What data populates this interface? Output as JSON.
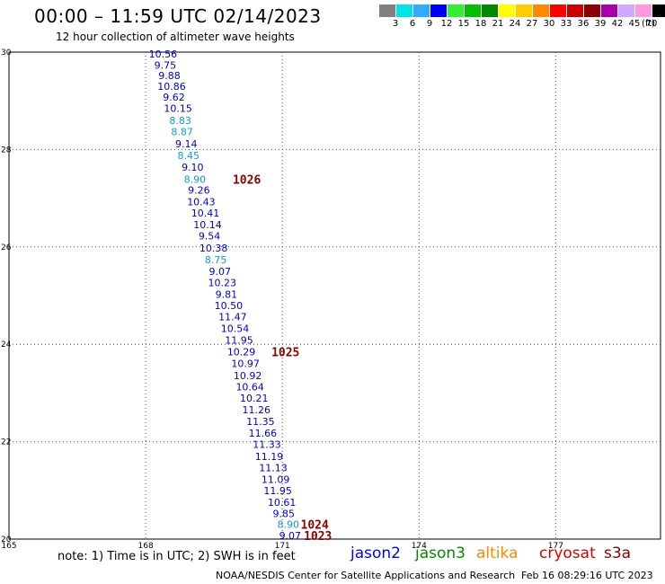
{
  "header": {
    "title": "00:00 – 11:59 UTC 02/14/2023",
    "subtitle": "12 hour collection of altimeter wave heights"
  },
  "color_scale": {
    "unit": "(ft)",
    "items": [
      {
        "label": "3",
        "color": "#808080"
      },
      {
        "label": "6",
        "color": "#00e5e5"
      },
      {
        "label": "9",
        "color": "#33aaff"
      },
      {
        "label": "12",
        "color": "#0000ff"
      },
      {
        "label": "15",
        "color": "#33ee33"
      },
      {
        "label": "18",
        "color": "#00c000"
      },
      {
        "label": "21",
        "color": "#008800"
      },
      {
        "label": "24",
        "color": "#ffff00"
      },
      {
        "label": "27",
        "color": "#ffcc00"
      },
      {
        "label": "30",
        "color": "#ff8800"
      },
      {
        "label": "33",
        "color": "#ff0000"
      },
      {
        "label": "36",
        "color": "#cc0000"
      },
      {
        "label": "39",
        "color": "#880000"
      },
      {
        "label": "42",
        "color": "#aa00aa"
      },
      {
        "label": "45",
        "color": "#ccaaff"
      },
      {
        "label": "70",
        "color": "#ff99dd"
      },
      {
        "label": "",
        "color": "#000000"
      }
    ]
  },
  "satellites": [
    {
      "name": "jason2",
      "color": "#0000ff"
    },
    {
      "name": "jason3",
      "color": "#008800"
    },
    {
      "name": "altika",
      "color": "#ff8800"
    },
    {
      "name": "cryosat",
      "color": "#dd0000"
    },
    {
      "name": "s3a",
      "color": "#880000"
    }
  ],
  "footer": {
    "note": "note: 1) Time is in UTC; 2) SWH is in feet",
    "credit": "NOAA/NESDIS Center for Satellite Applications and Research",
    "timestamp": "Feb 16 08:29:16 UTC 2023"
  },
  "chart_data": {
    "type": "scatter",
    "x_ticks": [
      "165",
      "168",
      "171",
      "174",
      "177"
    ],
    "y_ticks": [
      "20",
      "22",
      "24",
      "26",
      "28",
      "30"
    ],
    "xlim": [
      165,
      179.3
    ],
    "ylim": [
      20,
      30
    ],
    "grid": true,
    "colors": {
      "blue": "#0000cc",
      "cyan": "#1199dd",
      "time": "#880000"
    },
    "points": [
      {
        "x": 168.38,
        "y": 29.96,
        "v": "10.56",
        "c": "blue"
      },
      {
        "x": 168.43,
        "y": 29.73,
        "v": "9.75",
        "c": "blue"
      },
      {
        "x": 168.52,
        "y": 29.52,
        "v": "9.88",
        "c": "blue"
      },
      {
        "x": 168.57,
        "y": 29.3,
        "v": "10.86",
        "c": "blue"
      },
      {
        "x": 168.62,
        "y": 29.08,
        "v": "9.62",
        "c": "blue"
      },
      {
        "x": 168.71,
        "y": 28.85,
        "v": "10.15",
        "c": "blue"
      },
      {
        "x": 168.76,
        "y": 28.6,
        "v": "8.83",
        "c": "cyan"
      },
      {
        "x": 168.8,
        "y": 28.37,
        "v": "8.87",
        "c": "cyan"
      },
      {
        "x": 168.89,
        "y": 28.12,
        "v": "9.14",
        "c": "blue"
      },
      {
        "x": 168.94,
        "y": 27.88,
        "v": "8.45",
        "c": "cyan"
      },
      {
        "x": 169.03,
        "y": 27.64,
        "v": "9.10",
        "c": "blue"
      },
      {
        "x": 169.08,
        "y": 27.39,
        "v": "8.90",
        "c": "cyan"
      },
      {
        "x": 169.17,
        "y": 27.17,
        "v": "9.26",
        "c": "blue"
      },
      {
        "x": 169.22,
        "y": 26.93,
        "v": "10.43",
        "c": "blue"
      },
      {
        "x": 169.31,
        "y": 26.7,
        "v": "10.41",
        "c": "blue"
      },
      {
        "x": 169.36,
        "y": 26.46,
        "v": "10.14",
        "c": "blue"
      },
      {
        "x": 169.4,
        "y": 26.23,
        "v": "9.54",
        "c": "blue"
      },
      {
        "x": 169.49,
        "y": 25.98,
        "v": "10.38",
        "c": "blue"
      },
      {
        "x": 169.54,
        "y": 25.74,
        "v": "8.75",
        "c": "cyan"
      },
      {
        "x": 169.63,
        "y": 25.5,
        "v": "9.07",
        "c": "blue"
      },
      {
        "x": 169.68,
        "y": 25.27,
        "v": "10.23",
        "c": "blue"
      },
      {
        "x": 169.77,
        "y": 25.03,
        "v": "9.81",
        "c": "blue"
      },
      {
        "x": 169.82,
        "y": 24.8,
        "v": "10.50",
        "c": "blue"
      },
      {
        "x": 169.91,
        "y": 24.57,
        "v": "11.47",
        "c": "blue"
      },
      {
        "x": 169.96,
        "y": 24.33,
        "v": "10.54",
        "c": "blue"
      },
      {
        "x": 170.05,
        "y": 24.09,
        "v": "11.95",
        "c": "blue"
      },
      {
        "x": 170.1,
        "y": 23.85,
        "v": "10.29",
        "c": "blue"
      },
      {
        "x": 170.19,
        "y": 23.61,
        "v": "10.97",
        "c": "blue"
      },
      {
        "x": 170.24,
        "y": 23.36,
        "v": "10.92",
        "c": "blue"
      },
      {
        "x": 170.29,
        "y": 23.13,
        "v": "10.64",
        "c": "blue"
      },
      {
        "x": 170.38,
        "y": 22.9,
        "v": "10.21",
        "c": "blue"
      },
      {
        "x": 170.43,
        "y": 22.66,
        "v": "11.26",
        "c": "blue"
      },
      {
        "x": 170.52,
        "y": 22.42,
        "v": "11.35",
        "c": "blue"
      },
      {
        "x": 170.57,
        "y": 22.18,
        "v": "11.66",
        "c": "blue"
      },
      {
        "x": 170.66,
        "y": 21.95,
        "v": "11.33",
        "c": "blue"
      },
      {
        "x": 170.71,
        "y": 21.7,
        "v": "11.19",
        "c": "blue"
      },
      {
        "x": 170.8,
        "y": 21.47,
        "v": "11.13",
        "c": "blue"
      },
      {
        "x": 170.85,
        "y": 21.23,
        "v": "11.09",
        "c": "blue"
      },
      {
        "x": 170.9,
        "y": 21.0,
        "v": "11.95",
        "c": "blue"
      },
      {
        "x": 170.99,
        "y": 20.76,
        "v": "10.61",
        "c": "blue"
      },
      {
        "x": 171.03,
        "y": 20.53,
        "v": "9.85",
        "c": "blue"
      },
      {
        "x": 171.13,
        "y": 20.3,
        "v": "8.90",
        "c": "cyan"
      },
      {
        "x": 171.17,
        "y": 20.07,
        "v": "9.07",
        "c": "blue"
      }
    ],
    "time_labels": [
      {
        "x": 170.22,
        "y": 27.39,
        "v": "1026"
      },
      {
        "x": 171.07,
        "y": 23.85,
        "v": "1025"
      },
      {
        "x": 171.71,
        "y": 20.3,
        "v": "1024"
      },
      {
        "x": 171.78,
        "y": 20.07,
        "v": "1023"
      }
    ]
  }
}
